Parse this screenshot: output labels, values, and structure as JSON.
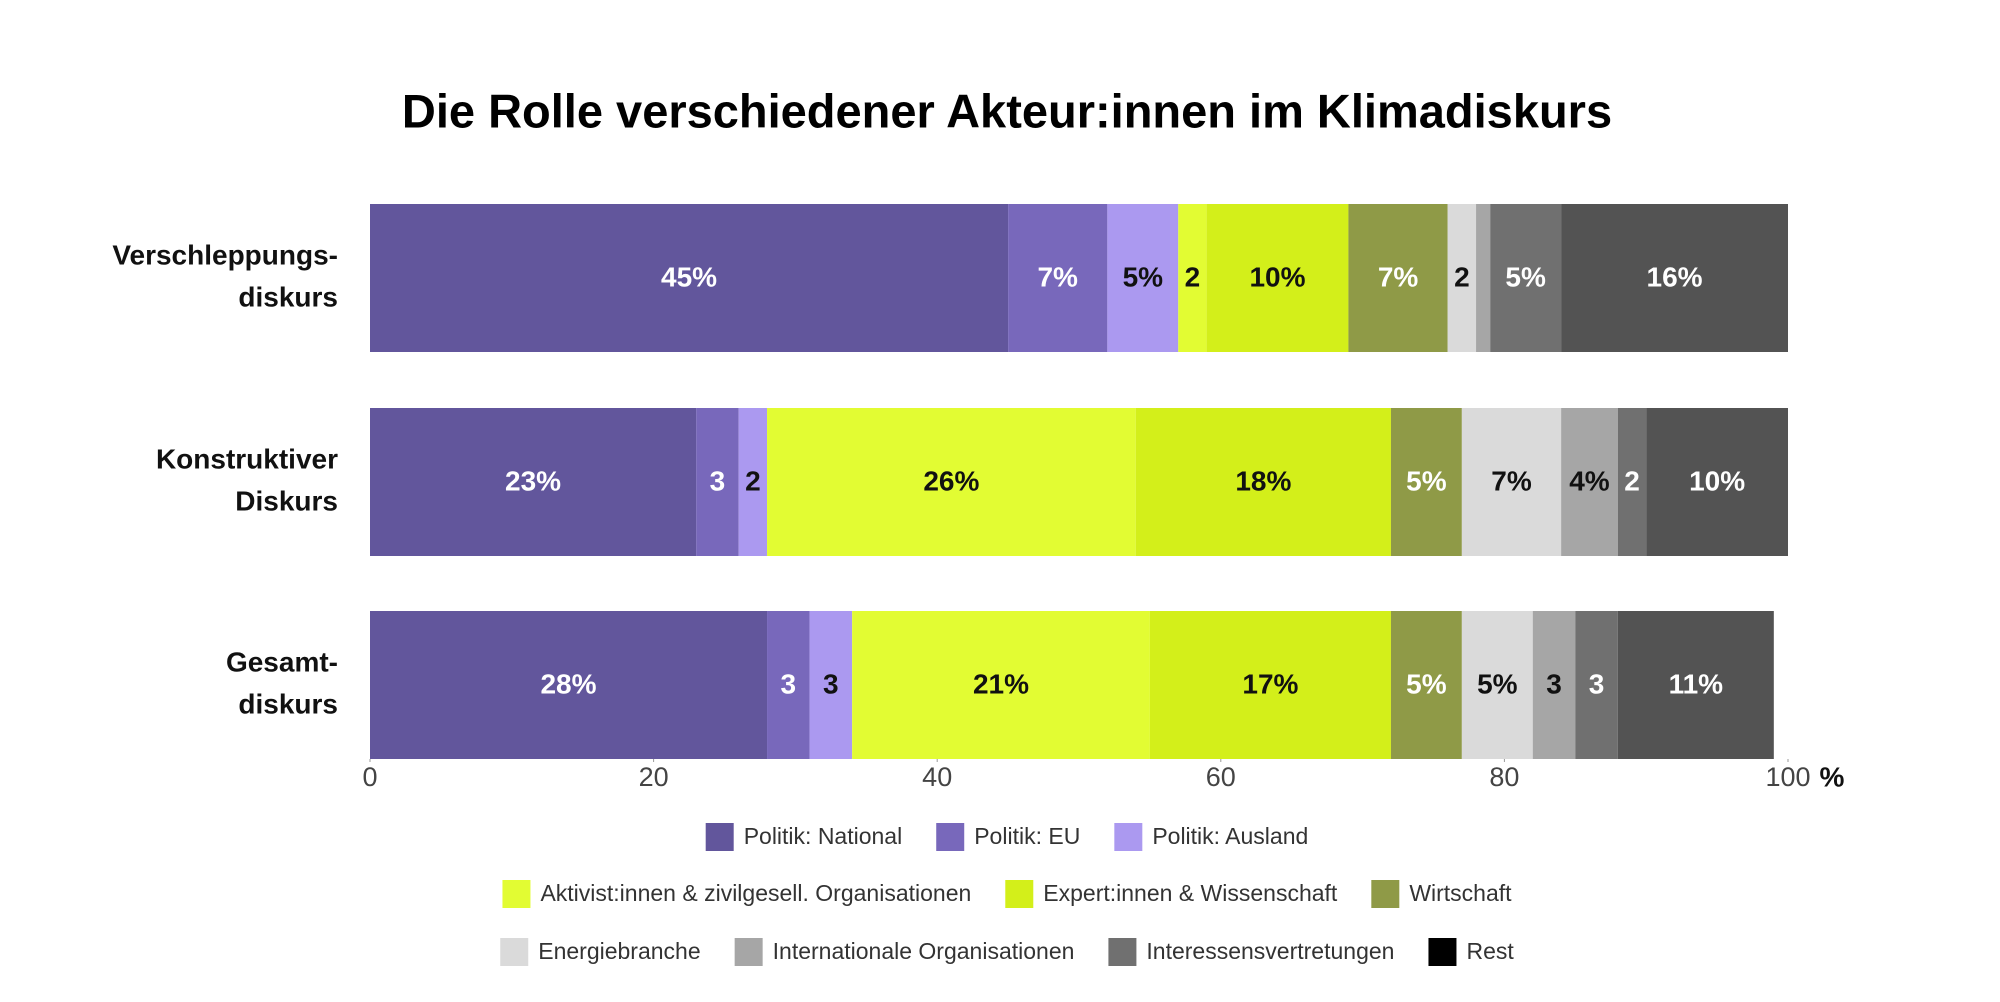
{
  "chart_data": {
    "type": "stacked_barh",
    "title": "Die Rolle verschiedener Akteur:innen im Klimadiskurs",
    "categories": [
      [
        "Verschleppungs-",
        "diskurs"
      ],
      [
        "Konstruktiver",
        "Diskurs"
      ],
      [
        "Gesamt-",
        "diskurs"
      ]
    ],
    "series": [
      {
        "name": "Politik: National",
        "color": "#62569c",
        "values": [
          45,
          23,
          28
        ],
        "value_labels": [
          "45%",
          "23%",
          "28%"
        ]
      },
      {
        "name": "Politik: EU",
        "color": "#7868bb",
        "values": [
          7,
          3,
          3
        ],
        "value_labels": [
          "7%",
          "3",
          "3"
        ]
      },
      {
        "name": "Politik: Ausland",
        "color": "#ab99f0",
        "values": [
          5,
          2,
          3
        ],
        "value_labels": [
          "5%",
          "2",
          "3"
        ]
      },
      {
        "name": "Aktivist:innen & zivilgesell. Organisationen",
        "color": "#e2fc33",
        "values": [
          2,
          26,
          21
        ],
        "value_labels": [
          "2",
          "26%",
          "21%"
        ]
      },
      {
        "name": "Expert:innen & Wissenschaft",
        "color": "#d3ef1a",
        "values": [
          10,
          18,
          17
        ],
        "value_labels": [
          "10%",
          "18%",
          "17%"
        ]
      },
      {
        "name": "Wirtschaft",
        "color": "#8f9a47",
        "values": [
          7,
          5,
          5
        ],
        "value_labels": [
          "7%",
          "5%",
          "5%"
        ]
      },
      {
        "name": "Energiebranche",
        "color": "#dadada",
        "values": [
          2,
          7,
          5
        ],
        "value_labels": [
          "2",
          "7%",
          "5%"
        ]
      },
      {
        "name": "Internationale Organisationen",
        "color": "#a6a6a6",
        "values": [
          1,
          4,
          3
        ],
        "value_labels": [
          null,
          "4%",
          "3"
        ]
      },
      {
        "name": "Interessensvertretungen",
        "color": "#707070",
        "values": [
          5,
          2,
          3
        ],
        "value_labels": [
          "5%",
          "2",
          "3"
        ]
      },
      {
        "name": "Rest",
        "color": "#535353",
        "values": [
          16,
          10,
          11
        ],
        "value_labels": [
          "16%",
          "10%",
          "11%"
        ]
      }
    ],
    "xlim": [
      0,
      100
    ],
    "xticks": [
      0,
      20,
      40,
      60,
      80,
      100
    ],
    "xlabel": "%"
  }
}
